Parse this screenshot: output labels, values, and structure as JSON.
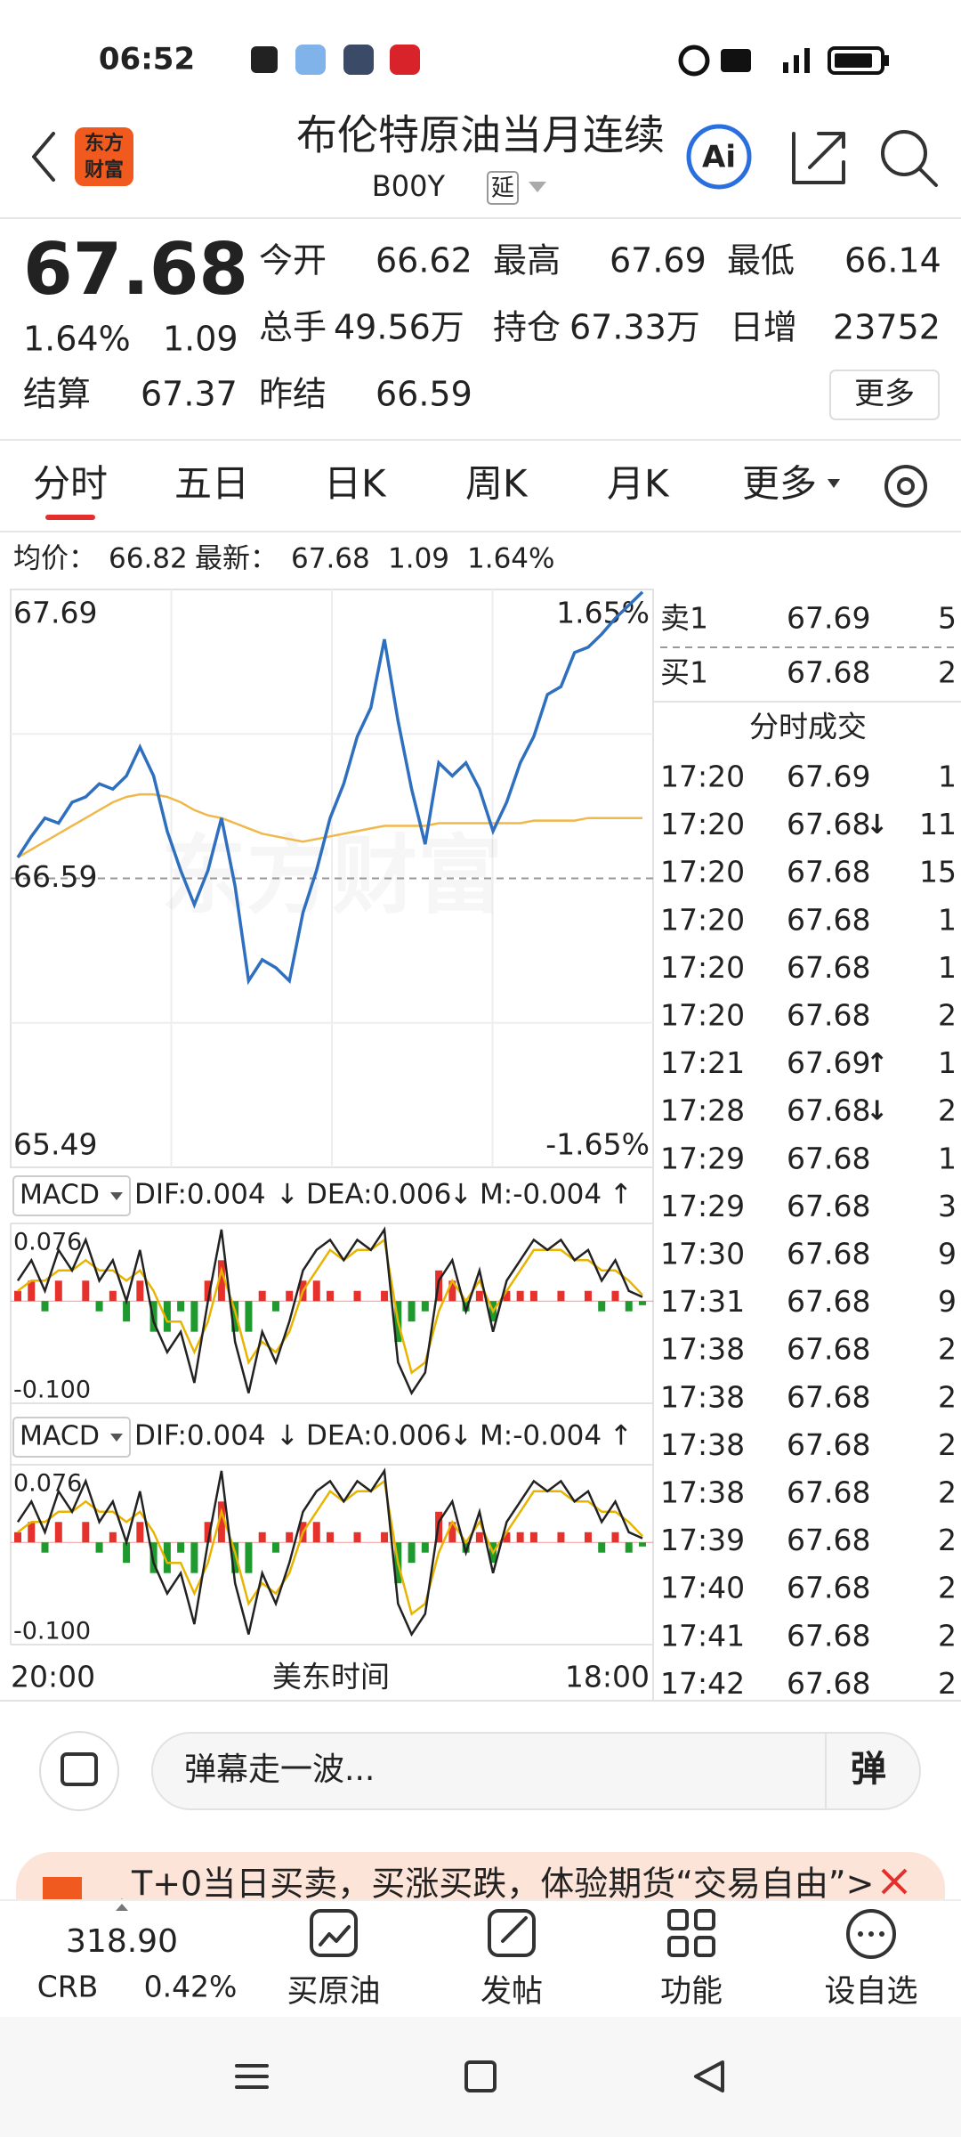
{
  "status": {
    "time": "06:52"
  },
  "header": {
    "logo": [
      "东方",
      "财富"
    ],
    "title": "布伦特原油当月连续",
    "code": "B00Y",
    "tag": "延",
    "ai": "Ai"
  },
  "quote": {
    "price": "67.68",
    "pct": "1.64%",
    "change": "1.09",
    "fields": [
      {
        "label": "今开",
        "value": "66.62",
        "tone": "up"
      },
      {
        "label": "最高",
        "value": "67.69",
        "tone": "up"
      },
      {
        "label": "最低",
        "value": "66.14",
        "tone": "down"
      },
      {
        "label": "总手",
        "value": "49.56万",
        "tone": "flat"
      },
      {
        "label": "持仓",
        "value": "67.33万",
        "tone": "flat"
      },
      {
        "label": "日增",
        "value": "23752",
        "tone": "flat"
      },
      {
        "label": "结算",
        "value": "67.37",
        "tone": "flat"
      },
      {
        "label": "昨结",
        "value": "66.59",
        "tone": "flat"
      }
    ],
    "more": "更多"
  },
  "tabs": {
    "items": [
      "分时",
      "五日",
      "日K",
      "周K",
      "月K",
      "更多"
    ],
    "active": 0
  },
  "summary": {
    "avg_label": "均价：",
    "avg": "66.82",
    "last_label": "最新：",
    "last": "67.68",
    "change": "1.09",
    "pct": "1.64%"
  },
  "chart_data": [
    {
      "type": "line",
      "watermark": "东方财富",
      "series": [
        {
          "color": "#2f6fbf",
          "values": [
            66.67,
            66.75,
            66.82,
            66.8,
            66.88,
            66.9,
            66.95,
            66.93,
            66.98,
            67.09,
            66.98,
            66.77,
            66.62,
            66.49,
            66.62,
            66.82,
            66.56,
            66.2,
            66.28,
            66.25,
            66.2,
            66.46,
            66.62,
            66.82,
            66.95,
            67.13,
            67.24,
            67.5,
            67.19,
            66.93,
            66.72,
            67.03,
            66.98,
            67.03,
            66.93,
            66.77,
            66.88,
            67.03,
            67.13,
            67.29,
            67.32,
            67.45,
            67.47,
            67.52,
            67.58,
            67.63,
            67.68
          ]
        },
        {
          "color": "#f0b84a",
          "values": [
            66.67,
            66.7,
            66.73,
            66.76,
            66.79,
            66.82,
            66.85,
            66.88,
            66.9,
            66.91,
            66.91,
            66.9,
            66.88,
            66.85,
            66.83,
            66.82,
            66.8,
            66.78,
            66.76,
            66.75,
            66.74,
            66.73,
            66.74,
            66.75,
            66.76,
            66.77,
            66.78,
            66.79,
            66.79,
            66.79,
            66.79,
            66.8,
            66.8,
            66.8,
            66.8,
            66.8,
            66.8,
            66.8,
            66.81,
            66.81,
            66.81,
            66.81,
            66.82,
            66.82,
            66.82,
            66.82,
            66.82
          ]
        }
      ],
      "ylim": [
        65.49,
        67.69
      ],
      "yticks": [
        65.49,
        66.59,
        67.69
      ],
      "y2lim": [
        -1.65,
        1.65
      ],
      "y2ticks": [
        {
          "value": -1.65,
          "label": "-1.65%"
        },
        {
          "value": 1.65,
          "label": "1.65%"
        }
      ],
      "x_labels": [
        "20:00",
        "18:00"
      ],
      "x_title": "美东时间"
    },
    {
      "type": "macd",
      "indicator": "MACD",
      "dif_label": "DIF:0.004",
      "dif_arrow": "↓",
      "dea_label": "DEA:0.006",
      "dea_arrow": "↓",
      "m_label": "M:-0.004",
      "m_arrow": "↑",
      "series": [
        {
          "color": "#222222",
          "values": [
            0.02,
            0.04,
            0.01,
            0.05,
            0.03,
            0.06,
            0.02,
            0.04,
            0.0,
            0.05,
            -0.02,
            -0.05,
            -0.03,
            -0.08,
            0.0,
            0.07,
            -0.04,
            -0.09,
            -0.03,
            -0.06,
            -0.02,
            0.03,
            0.05,
            0.06,
            0.04,
            0.06,
            0.05,
            0.07,
            -0.06,
            -0.09,
            -0.07,
            0.02,
            0.04,
            -0.01,
            0.03,
            -0.03,
            0.02,
            0.04,
            0.06,
            0.05,
            0.06,
            0.04,
            0.05,
            0.02,
            0.04,
            0.01,
            0.004
          ]
        },
        {
          "color": "#e8b400",
          "values": [
            0.01,
            0.02,
            0.02,
            0.03,
            0.03,
            0.04,
            0.03,
            0.03,
            0.02,
            0.03,
            0.01,
            -0.02,
            -0.02,
            -0.05,
            -0.02,
            0.03,
            -0.01,
            -0.06,
            -0.04,
            -0.05,
            -0.03,
            0.01,
            0.03,
            0.05,
            0.04,
            0.05,
            0.05,
            0.06,
            -0.02,
            -0.07,
            -0.06,
            -0.01,
            0.02,
            0.0,
            0.02,
            -0.01,
            0.01,
            0.03,
            0.05,
            0.05,
            0.05,
            0.04,
            0.04,
            0.03,
            0.03,
            0.02,
            0.006
          ]
        },
        {
          "up_color": "#e5322d",
          "down_color": "#1f9a2e",
          "values": [
            0.01,
            0.02,
            -0.01,
            0.02,
            0.0,
            0.02,
            -0.01,
            0.01,
            -0.02,
            0.02,
            -0.03,
            -0.03,
            -0.01,
            -0.03,
            0.02,
            0.04,
            -0.03,
            -0.03,
            0.01,
            -0.01,
            0.01,
            0.02,
            0.02,
            0.01,
            0.0,
            0.01,
            0.0,
            0.01,
            -0.04,
            -0.02,
            -0.01,
            0.03,
            0.02,
            -0.01,
            0.01,
            -0.02,
            0.01,
            0.01,
            0.01,
            0.0,
            0.01,
            0.0,
            0.01,
            -0.01,
            0.01,
            -0.01,
            -0.004
          ]
        }
      ],
      "ylim": [
        -0.1,
        0.076
      ],
      "yticks": [
        {
          "value": -0.1,
          "label": "-0.100"
        },
        0.076
      ]
    }
  ],
  "orderbook": {
    "ask": {
      "label": "卖1",
      "price": "67.69",
      "volume": "5"
    },
    "bid": {
      "label": "买1",
      "price": "67.68",
      "volume": "2"
    },
    "title": "分时成交",
    "trades": [
      {
        "time": "17:20",
        "price": "67.69",
        "volume": "1",
        "side": "up"
      },
      {
        "time": "17:20",
        "price": "67.68",
        "arrow": "↓",
        "volume": "11",
        "side": "down"
      },
      {
        "time": "17:20",
        "price": "67.68",
        "volume": "15",
        "side": "down"
      },
      {
        "time": "17:20",
        "price": "67.68",
        "volume": "1",
        "side": "down"
      },
      {
        "time": "17:20",
        "price": "67.68",
        "volume": "1",
        "side": "down"
      },
      {
        "time": "17:20",
        "price": "67.68",
        "volume": "2",
        "side": "down"
      },
      {
        "time": "17:21",
        "price": "67.69",
        "arrow": "↑",
        "volume": "1",
        "side": "up"
      },
      {
        "time": "17:28",
        "price": "67.68",
        "arrow": "↓",
        "volume": "2",
        "side": "down"
      },
      {
        "time": "17:29",
        "price": "67.68",
        "volume": "1",
        "side": "down"
      },
      {
        "time": "17:29",
        "price": "67.68",
        "volume": "3",
        "side": "down"
      },
      {
        "time": "17:30",
        "price": "67.68",
        "volume": "9",
        "side": "down"
      },
      {
        "time": "17:31",
        "price": "67.68",
        "volume": "9",
        "side": "down"
      },
      {
        "time": "17:38",
        "price": "67.68",
        "volume": "2",
        "side": "down"
      },
      {
        "time": "17:38",
        "price": "67.68",
        "volume": "2",
        "side": "down"
      },
      {
        "time": "17:38",
        "price": "67.68",
        "volume": "2",
        "side": "down"
      },
      {
        "time": "17:38",
        "price": "67.68",
        "volume": "2",
        "side": "down"
      },
      {
        "time": "17:39",
        "price": "67.68",
        "volume": "2",
        "side": "down"
      },
      {
        "time": "17:40",
        "price": "67.68",
        "volume": "2",
        "side": "down"
      },
      {
        "time": "17:41",
        "price": "67.68",
        "volume": "2",
        "side": "down"
      },
      {
        "time": "17:42",
        "price": "67.68",
        "volume": "2",
        "side": "down"
      }
    ]
  },
  "bottom": {
    "placeholder": "弹幕走一波...",
    "danmu": "弹",
    "banner": "T+0当日买卖，买涨买跌，体验期货“交易自由”>",
    "index": {
      "value": "318.90",
      "name": "CRB",
      "pct": "0.42%"
    },
    "actions": [
      "买原油",
      "发帖",
      "功能",
      "设自选"
    ]
  }
}
